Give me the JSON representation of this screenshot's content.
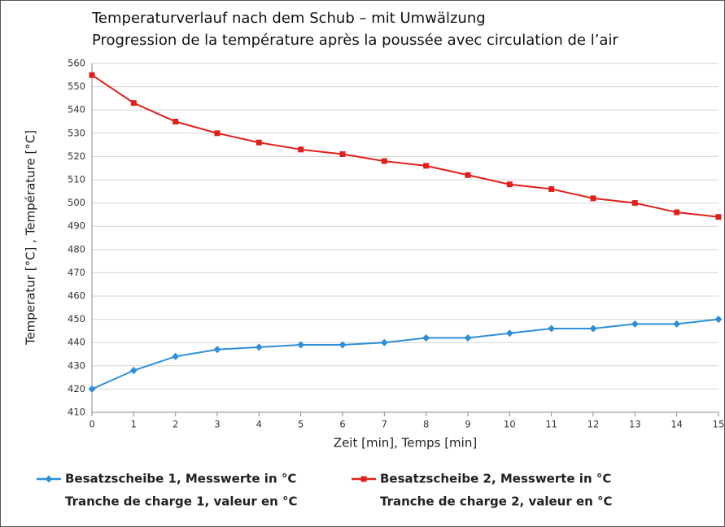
{
  "chart_data": {
    "type": "line",
    "title": [
      "Temperaturverlauf nach dem Schub – mit Umwälzung",
      "Progression de la température après la poussée avec circulation de l’air"
    ],
    "x_label": "Zeit [min], Temps [min]",
    "y_label": "Temperatur [°C] , Température [°C]",
    "x": [
      0,
      1,
      2,
      3,
      4,
      5,
      6,
      7,
      8,
      9,
      10,
      11,
      12,
      13,
      14,
      15
    ],
    "xlim": [
      0,
      15
    ],
    "xticks": [
      0,
      1,
      2,
      3,
      4,
      5,
      6,
      7,
      8,
      9,
      10,
      11,
      12,
      13,
      14,
      15
    ],
    "ylim": [
      410,
      560
    ],
    "yticks": [
      410,
      420,
      430,
      440,
      450,
      460,
      470,
      480,
      490,
      500,
      510,
      520,
      530,
      540,
      550,
      560
    ],
    "grid": true,
    "series": [
      {
        "name": [
          "Besatzscheibe 1, Messwerte in °C",
          "Tranche de charge 1, valeur en °C"
        ],
        "color": "#2e8fd6",
        "marker": "diamond",
        "values": [
          420,
          428,
          434,
          437,
          438,
          439,
          439,
          440,
          442,
          442,
          444,
          446,
          446,
          448,
          448,
          450
        ]
      },
      {
        "name": [
          "Besatzscheibe 2, Messwerte in °C",
          "Tranche de charge 2, valeur en °C"
        ],
        "color": "#e0201c",
        "marker": "square",
        "values": [
          555,
          543,
          535,
          530,
          526,
          523,
          521,
          518,
          516,
          512,
          508,
          506,
          502,
          500,
          496,
          494
        ]
      }
    ]
  }
}
